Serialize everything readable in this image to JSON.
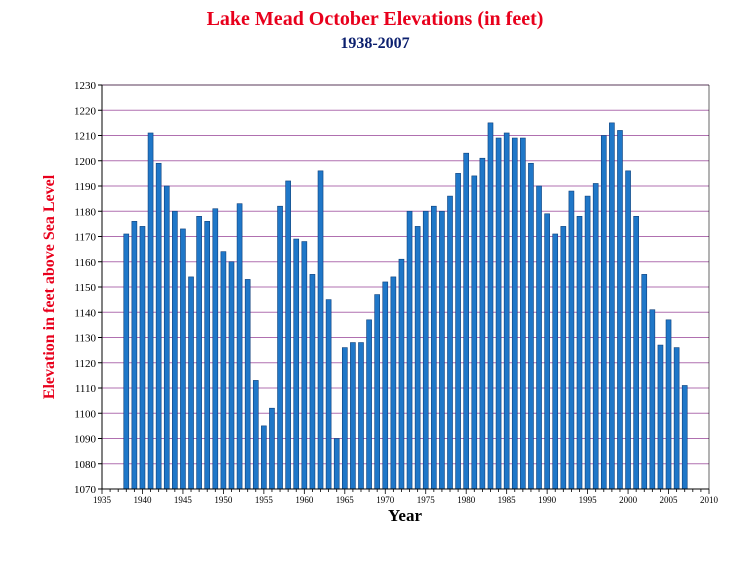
{
  "chart_data": {
    "type": "bar",
    "title": "Lake Mead October Elevations (in feet)",
    "subtitle": "1938-2007",
    "xlabel": "Year",
    "ylabel": "Elevation in feet above Sea Level",
    "xlim": [
      1935,
      2010
    ],
    "ylim": [
      1070,
      1230
    ],
    "x_ticks": [
      1935,
      1940,
      1945,
      1950,
      1955,
      1960,
      1965,
      1970,
      1975,
      1980,
      1985,
      1990,
      1995,
      2000,
      2005,
      2010
    ],
    "y_ticks": [
      1070,
      1080,
      1090,
      1100,
      1110,
      1120,
      1130,
      1140,
      1150,
      1160,
      1170,
      1180,
      1190,
      1200,
      1210,
      1220,
      1230
    ],
    "grid": "horizontal",
    "bar_color": "#1f77c8",
    "grid_color": "#b070b0",
    "x": [
      1938,
      1939,
      1940,
      1941,
      1942,
      1943,
      1944,
      1945,
      1946,
      1947,
      1948,
      1949,
      1950,
      1951,
      1952,
      1953,
      1954,
      1955,
      1956,
      1957,
      1958,
      1959,
      1960,
      1961,
      1962,
      1963,
      1964,
      1965,
      1966,
      1967,
      1968,
      1969,
      1970,
      1971,
      1972,
      1973,
      1974,
      1975,
      1976,
      1977,
      1978,
      1979,
      1980,
      1981,
      1982,
      1983,
      1984,
      1985,
      1986,
      1987,
      1988,
      1989,
      1990,
      1991,
      1992,
      1993,
      1994,
      1995,
      1996,
      1997,
      1998,
      1999,
      2000,
      2001,
      2002,
      2003,
      2004,
      2005,
      2006,
      2007
    ],
    "values": [
      1171,
      1176,
      1174,
      1211,
      1199,
      1190,
      1180,
      1173,
      1154,
      1178,
      1176,
      1181,
      1164,
      1160,
      1183,
      1153,
      1113,
      1095,
      1102,
      1182,
      1192,
      1169,
      1168,
      1155,
      1196,
      1145,
      1090,
      1126,
      1128,
      1128,
      1137,
      1147,
      1152,
      1154,
      1161,
      1180,
      1174,
      1180,
      1182,
      1180,
      1186,
      1195,
      1203,
      1194,
      1201,
      1215,
      1209,
      1211,
      1209,
      1209,
      1199,
      1190,
      1179,
      1171,
      1174,
      1188,
      1178,
      1186,
      1191,
      1210,
      1215,
      1212,
      1196,
      1178,
      1155,
      1141,
      1127,
      1137,
      1126,
      1111
    ]
  }
}
